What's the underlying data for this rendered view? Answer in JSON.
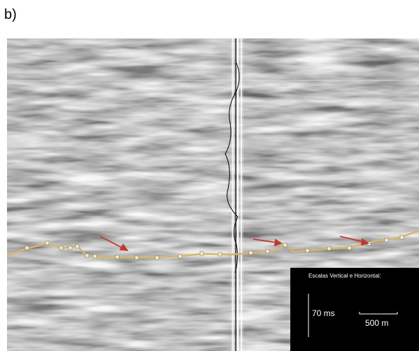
{
  "panel_label": "b)",
  "scale_box": {
    "title": "Escalas Vertical e Horizontal:",
    "vertical": "70 ms",
    "horizontal": "500 m"
  }
}
